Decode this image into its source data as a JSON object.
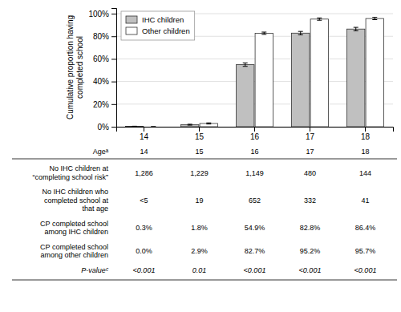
{
  "chart_data": {
    "type": "bar",
    "categories": [
      "14",
      "15",
      "16",
      "17",
      "18"
    ],
    "series": [
      {
        "name": "IHC children",
        "color": "#c0c0c0",
        "values": [
          0.3,
          1.8,
          54.9,
          82.8,
          86.4
        ],
        "errors": [
          0.15,
          0.4,
          1.5,
          1.5,
          1.5
        ]
      },
      {
        "name": "Other children",
        "color": "#ffffff",
        "values": [
          0.0,
          2.9,
          82.7,
          95.2,
          95.7
        ],
        "errors": [
          0.0,
          0.5,
          1.0,
          1.0,
          1.0
        ]
      }
    ],
    "ylabel": "Cumulative proportion having\ncompleted school",
    "ylim": [
      0,
      105
    ],
    "yticks": [
      {
        "value": 0,
        "label": "0%"
      },
      {
        "value": 20,
        "label": "20%"
      },
      {
        "value": 40,
        "label": "40%"
      },
      {
        "value": 60,
        "label": "60%"
      },
      {
        "value": 80,
        "label": "80%"
      },
      {
        "value": 100,
        "label": "100%"
      }
    ],
    "grid": true,
    "legend": "upper left",
    "table": [
      [
        "Ageᵃ",
        "14",
        "15",
        "16",
        "17",
        "18"
      ],
      [
        "No IHC children at\n“completing school risk”",
        "1,286",
        "1,229",
        "1,149",
        "480",
        "144"
      ],
      [
        "No IHC children who\ncompleted school at\nthat age",
        "<5",
        "19",
        "652",
        "332",
        "41"
      ],
      [
        "CP completed school\namong IHC children",
        "0.3%",
        "1.8%",
        "54.9%",
        "82.8%",
        "86.4%"
      ],
      [
        "CP completed school\namong other children",
        "0.0%",
        "2.9%",
        "82.7%",
        "95.2%",
        "95.7%"
      ],
      [
        "P-valueᶜ",
        "<0.001",
        "0.01",
        "<0.001",
        "<0.001",
        "<0.001"
      ]
    ]
  }
}
